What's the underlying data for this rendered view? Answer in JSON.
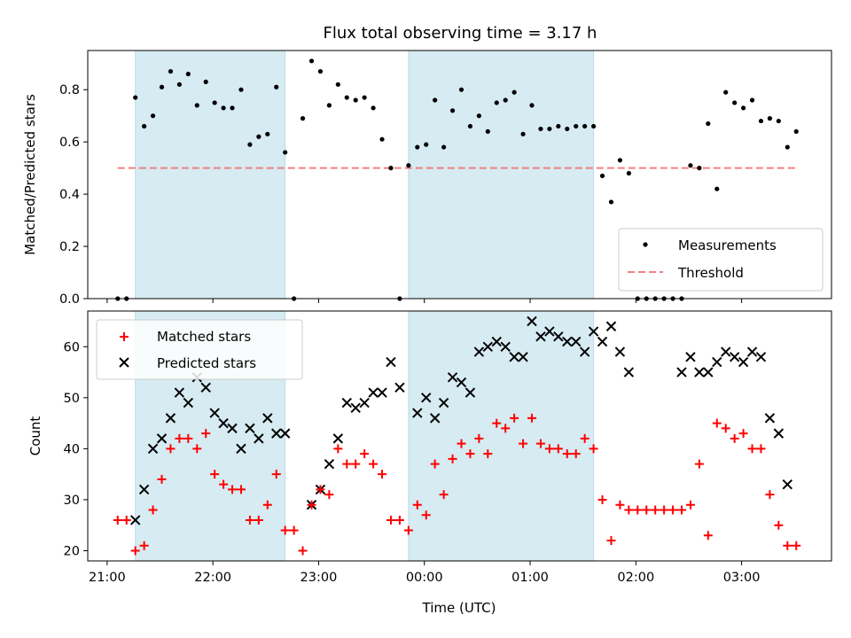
{
  "chart_data": [
    {
      "type": "scatter",
      "title": "Flux total observing time = 3.17 h",
      "ylabel": "Matched/Predicted stars",
      "ylim": [
        0,
        0.95
      ],
      "yticks": [
        "0.0",
        "0.2",
        "0.4",
        "0.6",
        "0.8"
      ],
      "ytick_values": [
        0,
        0.2,
        0.4,
        0.6,
        0.8
      ],
      "legend": [
        "Measurements",
        "Threshold"
      ],
      "legend_placement": "lower-right",
      "threshold": 0.5,
      "colors": {
        "measurements": "#000000",
        "threshold": "#f08080",
        "band": "#add8e6"
      },
      "series": [
        {
          "name": "Measurements",
          "x": [
            "21:06",
            "21:11",
            "21:16",
            "21:21",
            "21:26",
            "21:31",
            "21:36",
            "21:41",
            "21:46",
            "21:51",
            "21:56",
            "22:01",
            "22:06",
            "22:11",
            "22:16",
            "22:21",
            "22:26",
            "22:31",
            "22:36",
            "22:41",
            "22:46",
            "22:51",
            "22:56",
            "23:01",
            "23:06",
            "23:11",
            "23:16",
            "23:21",
            "23:26",
            "23:31",
            "23:36",
            "23:41",
            "23:46",
            "23:51",
            "23:56",
            "00:01",
            "00:06",
            "00:11",
            "00:16",
            "00:21",
            "00:26",
            "00:31",
            "00:36",
            "00:41",
            "00:46",
            "00:51",
            "00:56",
            "01:01",
            "01:06",
            "01:11",
            "01:16",
            "01:21",
            "01:26",
            "01:31",
            "01:36",
            "01:41",
            "01:46",
            "01:51",
            "01:56",
            "02:01",
            "02:06",
            "02:11",
            "02:16",
            "02:21",
            "02:26",
            "02:31",
            "02:36",
            "02:41",
            "02:46",
            "02:51",
            "02:56",
            "03:01",
            "03:06",
            "03:11",
            "03:16",
            "03:21",
            "03:26",
            "03:31"
          ],
          "y": [
            0,
            0,
            0.77,
            0.66,
            0.7,
            0.81,
            0.87,
            0.82,
            0.86,
            0.74,
            0.83,
            0.75,
            0.73,
            0.73,
            0.8,
            0.59,
            0.62,
            0.63,
            0.81,
            0.56,
            0,
            0.69,
            0.91,
            0.87,
            0.74,
            0.82,
            0.77,
            0.76,
            0.77,
            0.73,
            0.61,
            0.5,
            0,
            0.51,
            0.58,
            0.59,
            0.76,
            0.58,
            0.72,
            0.8,
            0.66,
            0.7,
            0.64,
            0.75,
            0.76,
            0.79,
            0.63,
            0.74,
            0.65,
            0.65,
            0.66,
            0.65,
            0.66,
            0.66,
            0.66,
            0.47,
            0.37,
            0.53,
            0.48,
            0,
            0,
            0,
            0,
            0,
            0,
            0.51,
            0.5,
            0.67,
            0.42,
            0.79,
            0.75,
            0.73,
            0.76,
            0.68,
            0.69,
            0.68,
            0.58,
            0.64
          ]
        },
        {
          "name": "Threshold",
          "x": [
            "21:06",
            "03:31"
          ],
          "y": [
            0.5,
            0.5
          ]
        }
      ],
      "shaded_intervals": [
        [
          "21:16",
          "22:41"
        ],
        [
          "23:51",
          "01:36"
        ]
      ]
    },
    {
      "type": "scatter",
      "xlabel": "Time (UTC)",
      "ylabel": "Count",
      "ylim": [
        18,
        67
      ],
      "yticks": [
        "20",
        "30",
        "40",
        "50",
        "60"
      ],
      "ytick_values": [
        20,
        30,
        40,
        50,
        60
      ],
      "xlim": [
        "20:49",
        "03:51"
      ],
      "xticks": [
        "21:00",
        "22:00",
        "23:00",
        "00:00",
        "01:00",
        "02:00",
        "03:00"
      ],
      "legend": [
        "Matched stars",
        "Predicted stars"
      ],
      "legend_placement": "upper-left",
      "colors": {
        "matched": "#ff0000",
        "predicted": "#000000",
        "band": "#add8e6"
      },
      "series": [
        {
          "name": "Matched stars",
          "x": [
            "21:06",
            "21:11",
            "21:16",
            "21:21",
            "21:26",
            "21:31",
            "21:36",
            "21:41",
            "21:46",
            "21:51",
            "21:56",
            "22:01",
            "22:06",
            "22:11",
            "22:16",
            "22:21",
            "22:26",
            "22:31",
            "22:36",
            "22:41",
            "22:46",
            "22:51",
            "22:56",
            "23:01",
            "23:06",
            "23:11",
            "23:16",
            "23:21",
            "23:26",
            "23:31",
            "23:36",
            "23:41",
            "23:46",
            "23:51",
            "23:56",
            "00:01",
            "00:06",
            "00:11",
            "00:16",
            "00:21",
            "00:26",
            "00:31",
            "00:36",
            "00:41",
            "00:46",
            "00:51",
            "00:56",
            "01:01",
            "01:06",
            "01:11",
            "01:16",
            "01:21",
            "01:26",
            "01:31",
            "01:36",
            "01:41",
            "01:46",
            "01:51",
            "01:56",
            "02:01",
            "02:06",
            "02:11",
            "02:16",
            "02:21",
            "02:26",
            "02:31",
            "02:36",
            "02:41",
            "02:46",
            "02:51",
            "02:56",
            "03:01",
            "03:06",
            "03:11",
            "03:16",
            "03:21",
            "03:26",
            "03:31"
          ],
          "y": [
            26,
            26,
            20,
            21,
            28,
            34,
            40,
            42,
            42,
            40,
            43,
            35,
            33,
            32,
            32,
            26,
            26,
            29,
            35,
            24,
            24,
            20,
            29,
            32,
            31,
            40,
            37,
            37,
            39,
            37,
            35,
            26,
            26,
            24,
            29,
            27,
            37,
            31,
            38,
            41,
            39,
            42,
            39,
            45,
            44,
            46,
            41,
            46,
            41,
            40,
            40,
            39,
            39,
            42,
            40,
            30,
            22,
            29,
            28,
            28,
            28,
            28,
            28,
            28,
            28,
            29,
            37,
            23,
            45,
            44,
            42,
            43,
            40,
            40,
            31,
            25,
            21,
            21
          ]
        },
        {
          "name": "Predicted stars",
          "x": [
            "21:16",
            "21:21",
            "21:26",
            "21:31",
            "21:36",
            "21:41",
            "21:46",
            "21:51",
            "21:56",
            "22:01",
            "22:06",
            "22:11",
            "22:16",
            "22:21",
            "22:26",
            "22:31",
            "22:36",
            "22:41",
            "22:56",
            "23:01",
            "23:06",
            "23:11",
            "23:16",
            "23:21",
            "23:26",
            "23:31",
            "23:36",
            "23:41",
            "23:46",
            "23:56",
            "00:01",
            "00:06",
            "00:11",
            "00:16",
            "00:21",
            "00:26",
            "00:31",
            "00:36",
            "00:41",
            "00:46",
            "00:51",
            "00:56",
            "01:01",
            "01:06",
            "01:11",
            "01:16",
            "01:21",
            "01:26",
            "01:31",
            "01:36",
            "01:41",
            "01:46",
            "01:51",
            "01:56",
            "02:26",
            "02:31",
            "02:36",
            "02:41",
            "02:46",
            "02:51",
            "02:56",
            "03:01",
            "03:06",
            "03:11",
            "03:16",
            "03:21",
            "03:26"
          ],
          "y": [
            26,
            32,
            40,
            42,
            46,
            51,
            49,
            54,
            52,
            47,
            45,
            44,
            40,
            44,
            42,
            46,
            43,
            43,
            29,
            32,
            37,
            42,
            49,
            48,
            49,
            51,
            51,
            57,
            52,
            47,
            50,
            46,
            49,
            54,
            53,
            51,
            59,
            60,
            61,
            60,
            58,
            58,
            65,
            62,
            63,
            62,
            61,
            61,
            59,
            63,
            61,
            64,
            59,
            55,
            55,
            58,
            55,
            55,
            57,
            59,
            58,
            57,
            59,
            58,
            46,
            43,
            33
          ]
        }
      ],
      "shaded_intervals": [
        [
          "21:16",
          "22:41"
        ],
        [
          "23:51",
          "01:36"
        ]
      ]
    }
  ]
}
